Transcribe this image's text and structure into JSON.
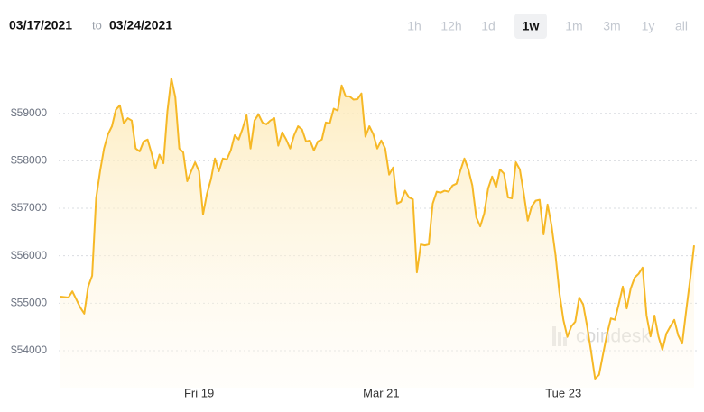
{
  "header": {
    "start_date": "03/17/2021",
    "separator": "to",
    "end_date": "03/24/2021",
    "ranges": [
      "1h",
      "12h",
      "1d",
      "1w",
      "1m",
      "3m",
      "1y",
      "all"
    ],
    "selected_range": "1w"
  },
  "watermark": "coindesk",
  "chart_data": {
    "type": "area",
    "color": "#f6b826",
    "grid": true,
    "ylim": [
      53220,
      60250
    ],
    "yticks": [
      {
        "value": 54000,
        "label": "$54000"
      },
      {
        "value": 55000,
        "label": "$55000"
      },
      {
        "value": 56000,
        "label": "$56000"
      },
      {
        "value": 57000,
        "label": "$57000"
      },
      {
        "value": 58000,
        "label": "$58000"
      },
      {
        "value": 59000,
        "label": "$59000"
      }
    ],
    "categories": [
      null,
      null,
      null,
      null,
      null,
      null,
      null,
      null,
      null,
      null,
      null,
      null,
      null,
      null,
      null,
      null,
      null,
      null,
      null,
      null,
      null,
      null,
      null,
      null,
      null,
      null,
      null,
      null,
      null,
      null,
      null,
      null,
      null,
      null,
      null,
      "Fri 19",
      null,
      null,
      null,
      null,
      null,
      null,
      null,
      null,
      null,
      null,
      null,
      null,
      null,
      null,
      null,
      null,
      null,
      null,
      null,
      null,
      null,
      null,
      null,
      null,
      null,
      null,
      null,
      null,
      null,
      null,
      null,
      null,
      null,
      null,
      null,
      null,
      null,
      null,
      null,
      null,
      null,
      null,
      null,
      null,
      null,
      "Mar 21",
      null,
      null,
      null,
      null,
      null,
      null,
      null,
      null,
      null,
      null,
      null,
      null,
      null,
      null,
      null,
      null,
      null,
      null,
      null,
      null,
      null,
      null,
      null,
      null,
      null,
      null,
      null,
      null,
      null,
      null,
      null,
      null,
      null,
      null,
      null,
      null,
      null,
      null,
      null,
      null,
      null,
      null,
      null,
      null,
      null,
      "Tue 23",
      null,
      null,
      null,
      null,
      null,
      null,
      null,
      null,
      null,
      null,
      null,
      null,
      null,
      null,
      null,
      null,
      null,
      null,
      null,
      null,
      null,
      null,
      null,
      null,
      null,
      null,
      null,
      null,
      null,
      null,
      null,
      null,
      null
    ],
    "values": [
      55140,
      55130,
      55120,
      55250,
      55080,
      54910,
      54780,
      55350,
      55580,
      57210,
      57780,
      58260,
      58560,
      58730,
      59080,
      59170,
      58790,
      58900,
      58850,
      58260,
      58200,
      58410,
      58450,
      58160,
      57840,
      58130,
      57950,
      59040,
      59740,
      59340,
      58260,
      58180,
      57570,
      57780,
      57970,
      57780,
      56870,
      57310,
      57610,
      58050,
      57780,
      58050,
      58030,
      58220,
      58540,
      58450,
      58680,
      58960,
      58260,
      58850,
      58980,
      58810,
      58770,
      58850,
      58900,
      58320,
      58600,
      58450,
      58260,
      58540,
      58730,
      58660,
      58410,
      58430,
      58220,
      58410,
      58450,
      58810,
      58790,
      59100,
      59060,
      59590,
      59360,
      59360,
      59290,
      59300,
      59420,
      58510,
      58730,
      58560,
      58260,
      58430,
      58260,
      57710,
      57860,
      57100,
      57140,
      57370,
      57230,
      57190,
      55650,
      56240,
      56220,
      56240,
      57100,
      57350,
      57330,
      57370,
      57350,
      57480,
      57520,
      57800,
      58050,
      57820,
      57480,
      56810,
      56620,
      56890,
      57420,
      57670,
      57440,
      57820,
      57730,
      57230,
      57210,
      57970,
      57820,
      57310,
      56740,
      57040,
      57160,
      57180,
      56450,
      57080,
      56640,
      56020,
      55220,
      54650,
      54290,
      54510,
      54610,
      55120,
      54970,
      54510,
      53980,
      53410,
      53490,
      53920,
      54340,
      54680,
      54650,
      54990,
      55350,
      54890,
      55310,
      55540,
      55620,
      55750,
      54740,
      54300,
      54740,
      54300,
      54020,
      54360,
      54510,
      54650,
      54320,
      54150,
      54840,
      55500,
      56220
    ]
  }
}
